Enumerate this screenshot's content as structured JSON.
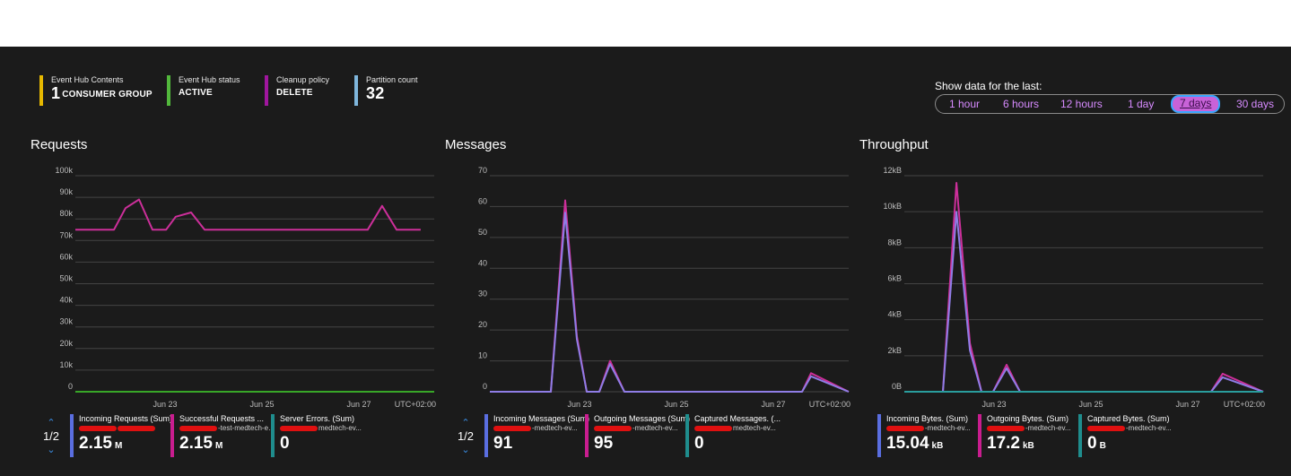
{
  "tiles": [
    {
      "label": "Event Hub Contents",
      "big": "1",
      "value": "CONSUMER GROUP",
      "color": "#e6b800"
    },
    {
      "label": "Event Hub status",
      "big": "",
      "value": "ACTIVE",
      "color": "#52b83c"
    },
    {
      "label": "Cleanup policy",
      "big": "",
      "value": "DELETE",
      "color": "#a0169e"
    },
    {
      "label": "Partition count",
      "big": "32",
      "value": "",
      "color": "#7fb6dc"
    }
  ],
  "time_range": {
    "title": "Show data for the last:",
    "options": [
      "1 hour",
      "6 hours",
      "12 hours",
      "1 day",
      "7 days",
      "30 days"
    ],
    "selected": "7 days"
  },
  "timezone": "UTC+02:00",
  "pager": {
    "text": "1/2",
    "up": "chevron-up",
    "down": "chevron-down"
  },
  "chart_data": [
    {
      "type": "line",
      "title": "Requests",
      "x_labels": [
        "Jun 23",
        "Jun 25",
        "Jun 27"
      ],
      "y_tick_labels": [
        "0",
        "10k",
        "20k",
        "30k",
        "40k",
        "50k",
        "60k",
        "70k",
        "80k",
        "90k",
        "100k"
      ],
      "ylim": [
        0,
        100000
      ],
      "x_range": [
        0,
        372
      ],
      "series": [
        {
          "name": "Incoming Requests (Sum)",
          "color": "#cc2f9a",
          "x": [
            0,
            40,
            52,
            66,
            80,
            94,
            104,
            120,
            134,
            150,
            170,
            200,
            230,
            260,
            290,
            303,
            318,
            333,
            343,
            358
          ],
          "y": [
            75000,
            75000,
            85000,
            89000,
            75000,
            75000,
            81000,
            83000,
            75000,
            75000,
            75000,
            75000,
            75000,
            75000,
            75000,
            75000,
            86000,
            75000,
            75000,
            75000
          ]
        },
        {
          "name": "Server Errors. (Sum)",
          "color": "#38a628",
          "x": [
            0,
            372
          ],
          "y": [
            0,
            0
          ]
        }
      ]
    },
    {
      "type": "line",
      "title": "Messages",
      "x_labels": [
        "Jun 23",
        "Jun 25",
        "Jun 27"
      ],
      "y_tick_labels": [
        "0",
        "10",
        "20",
        "30",
        "40",
        "50",
        "60",
        "70"
      ],
      "ylim": [
        0,
        70
      ],
      "x_range": [
        0,
        400
      ],
      "series": [
        {
          "name": "Outgoing Messages (Sum)",
          "color": "#cc2f9a",
          "x": [
            0,
            68,
            84,
            97,
            108,
            122,
            134,
            150,
            330,
            348,
            358,
            400
          ],
          "y": [
            0,
            0,
            62,
            18,
            0,
            0,
            10,
            0,
            0,
            0,
            6,
            0
          ]
        },
        {
          "name": "Incoming Messages (Sum)",
          "color": "#8f7de6",
          "x": [
            0,
            68,
            84,
            97,
            108,
            122,
            134,
            150,
            330,
            348,
            358,
            400
          ],
          "y": [
            0,
            0,
            58,
            17,
            0,
            0,
            9,
            0,
            0,
            0,
            5,
            0
          ]
        }
      ]
    },
    {
      "type": "line",
      "title": "Throughput",
      "x_labels": [
        "Jun 23",
        "Jun 25",
        "Jun 27"
      ],
      "y_tick_labels": [
        "0B",
        "2kB",
        "4kB",
        "6kB",
        "8kB",
        "10kB",
        "12kB"
      ],
      "ylim": [
        0,
        12000
      ],
      "x_range": [
        0,
        372
      ],
      "series": [
        {
          "name": "Outgoing Bytes. (Sum)",
          "color": "#cc2f9a",
          "x": [
            0,
            40,
            54,
            68,
            80,
            92,
            106,
            120,
            300,
            318,
            330,
            372
          ],
          "y": [
            0,
            0,
            11600,
            2700,
            0,
            0,
            1500,
            0,
            0,
            0,
            1000,
            0
          ]
        },
        {
          "name": "Incoming Bytes. (Sum)",
          "color": "#8f7de6",
          "x": [
            0,
            40,
            54,
            68,
            80,
            92,
            106,
            120,
            300,
            318,
            330,
            372
          ],
          "y": [
            0,
            0,
            10000,
            2300,
            0,
            0,
            1300,
            0,
            0,
            0,
            800,
            0
          ]
        },
        {
          "name": "Captured Bytes. (Sum)",
          "color": "#2a9d9d",
          "x": [
            0,
            372
          ],
          "y": [
            0,
            0
          ]
        }
      ]
    }
  ],
  "legends": [
    [
      {
        "name": "Incoming Requests (Sum)",
        "resource": "",
        "value": "2.15",
        "unit": "M",
        "color": "#5a6ee0"
      },
      {
        "name": "Successful Requests ...",
        "resource": "-test-medtech-ev...",
        "value": "2.15",
        "unit": "M",
        "color": "#c91d8f"
      },
      {
        "name": "Server Errors. (Sum)",
        "resource": "medtech-ev...",
        "value": "0",
        "unit": "",
        "color": "#1f8d8d"
      }
    ],
    [
      {
        "name": "Incoming Messages (Sum)",
        "resource": "-medtech-ev...",
        "value": "91",
        "unit": "",
        "color": "#5a6ee0"
      },
      {
        "name": "Outgoing Messages (Sum)",
        "resource": "-medtech-ev...",
        "value": "95",
        "unit": "",
        "color": "#c91d8f"
      },
      {
        "name": "Captured Messages. (...",
        "resource": "medtech-ev...",
        "value": "0",
        "unit": "",
        "color": "#1f8d8d"
      }
    ],
    [
      {
        "name": "Incoming Bytes. (Sum)",
        "resource": "-medtech-ev...",
        "value": "15.04",
        "unit": "kB",
        "color": "#5a6ee0"
      },
      {
        "name": "Outgoing Bytes. (Sum)",
        "resource": "-medtech-ev...",
        "value": "17.2",
        "unit": "kB",
        "color": "#c91d8f"
      },
      {
        "name": "Captured Bytes. (Sum)",
        "resource": "-medtech-ev...",
        "value": "0",
        "unit": "B",
        "color": "#1f8d8d"
      }
    ]
  ]
}
